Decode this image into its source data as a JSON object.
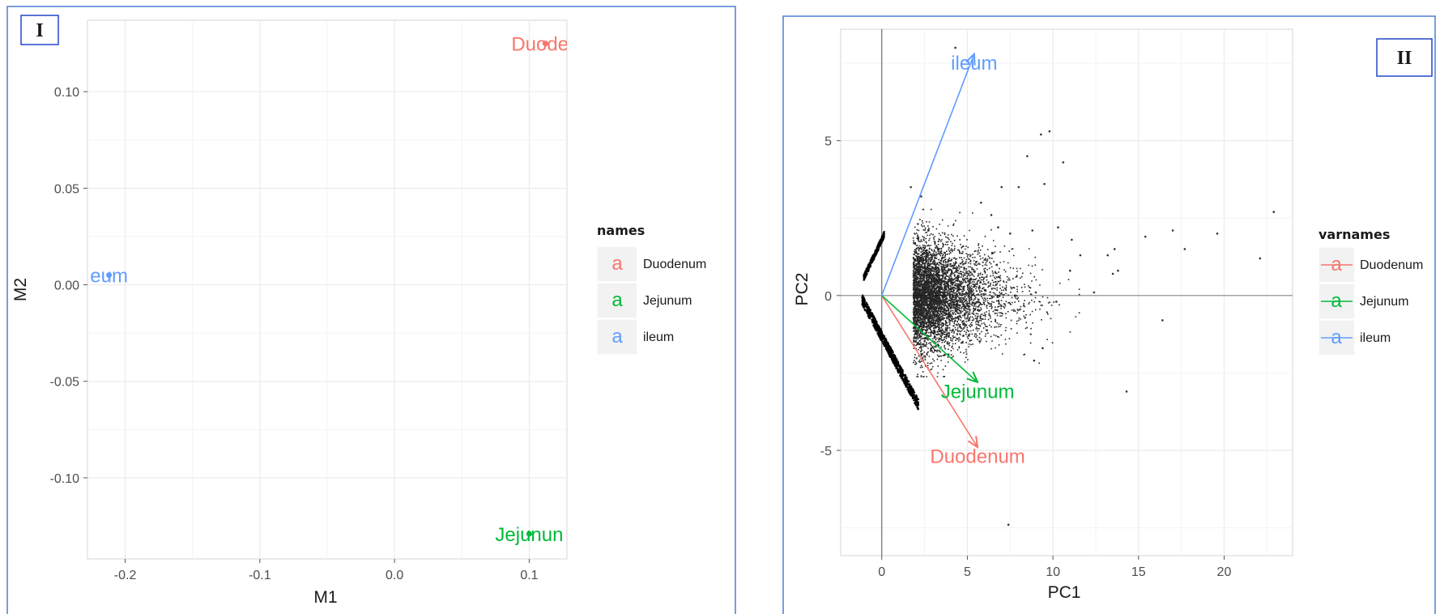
{
  "panels": {
    "left": {
      "label": "I"
    },
    "right": {
      "label": "II"
    }
  },
  "chart_data": [
    {
      "type": "scatter",
      "title": "",
      "xlabel": "M1",
      "ylabel": "M2",
      "xlim": [
        -0.228,
        0.128
      ],
      "ylim": [
        -0.142,
        0.137
      ],
      "xticks": [
        -0.2,
        -0.1,
        0.0,
        0.1
      ],
      "xtick_labels": [
        "-0.2",
        "-0.1",
        "0.0",
        "0.1"
      ],
      "yticks": [
        0.1,
        0.05,
        0.0,
        -0.05,
        -0.1
      ],
      "ytick_labels": [
        "0.10",
        "0.05",
        "0.00",
        "-0.05",
        "-0.10"
      ],
      "grid": true,
      "legend": {
        "title": "names",
        "placement": "right",
        "entries": [
          "Duodenum",
          "Jejunum",
          "ileum"
        ],
        "key_glyph": "a"
      },
      "points": [
        {
          "name": "Duodenum",
          "x": 0.112,
          "y": 0.125,
          "color": "#f8766d",
          "label": "Duoden"
        },
        {
          "name": "Jejunum",
          "x": 0.1,
          "y": -0.129,
          "color": "#00ba38",
          "label": "Jejunun"
        },
        {
          "name": "ileum",
          "x": -0.212,
          "y": 0.005,
          "color": "#619cff",
          "label": "eum"
        }
      ]
    },
    {
      "type": "scatter",
      "subtype": "biplot",
      "title": "",
      "xlabel": "PC1",
      "ylabel": "PC2",
      "xlim": [
        -2.4,
        24.0
      ],
      "ylim": [
        -8.4,
        8.6
      ],
      "xticks": [
        0,
        5,
        10,
        15,
        20
      ],
      "xtick_labels": [
        "0",
        "5",
        "10",
        "15",
        "20"
      ],
      "yticks": [
        5,
        0,
        -5
      ],
      "ytick_labels": [
        "5",
        "0",
        "-5"
      ],
      "grid": true,
      "legend": {
        "title": "varnames",
        "placement": "right",
        "entries": [
          "Duodenum",
          "Jejunum",
          "ileum"
        ],
        "key_glyph": "a"
      },
      "vectors": [
        {
          "name": "Duodenum",
          "x": 5.6,
          "y": -4.9,
          "color": "#f8766d",
          "label": "Duodenum",
          "label_x": 5.6,
          "label_y": -5.2
        },
        {
          "name": "Jejunum",
          "x": 5.6,
          "y": -2.8,
          "color": "#00ba38",
          "label": "Jejunum",
          "label_x": 5.6,
          "label_y": -3.1
        },
        {
          "name": "ileum",
          "x": 5.4,
          "y": 7.8,
          "color": "#619cff",
          "label": "ileum",
          "label_x": 5.4,
          "label_y": 7.5
        }
      ],
      "scatter_cloud": {
        "color": "#000000",
        "center": [
          1.8,
          0.0
        ],
        "spread_x": 2.5,
        "spread_y": 0.9,
        "outliers": [
          [
            9.3,
            5.2
          ],
          [
            9.8,
            5.3
          ],
          [
            10.6,
            4.3
          ],
          [
            8.5,
            4.5
          ],
          [
            7.0,
            3.5
          ],
          [
            8.0,
            3.5
          ],
          [
            9.5,
            3.6
          ],
          [
            5.8,
            3.0
          ],
          [
            6.4,
            2.6
          ],
          [
            6.8,
            2.2
          ],
          [
            7.5,
            2.0
          ],
          [
            8.8,
            2.1
          ],
          [
            10.3,
            2.2
          ],
          [
            11.1,
            1.8
          ],
          [
            11.6,
            1.3
          ],
          [
            11.0,
            0.8
          ],
          [
            13.2,
            1.3
          ],
          [
            13.6,
            1.5
          ],
          [
            13.5,
            0.7
          ],
          [
            13.8,
            0.8
          ],
          [
            15.4,
            1.9
          ],
          [
            17.0,
            2.1
          ],
          [
            17.7,
            1.5
          ],
          [
            19.6,
            2.0
          ],
          [
            22.1,
            1.2
          ],
          [
            22.9,
            2.7
          ],
          [
            16.4,
            -0.8
          ],
          [
            9.4,
            -1.7
          ],
          [
            8.9,
            -2.1
          ],
          [
            14.3,
            -3.1
          ],
          [
            7.4,
            -7.4
          ],
          [
            4.3,
            8.0
          ],
          [
            1.7,
            3.5
          ],
          [
            2.3,
            3.2
          ],
          [
            12.4,
            0.1
          ],
          [
            10.2,
            -0.2
          ],
          [
            9.0,
            0.1
          ]
        ]
      }
    }
  ]
}
